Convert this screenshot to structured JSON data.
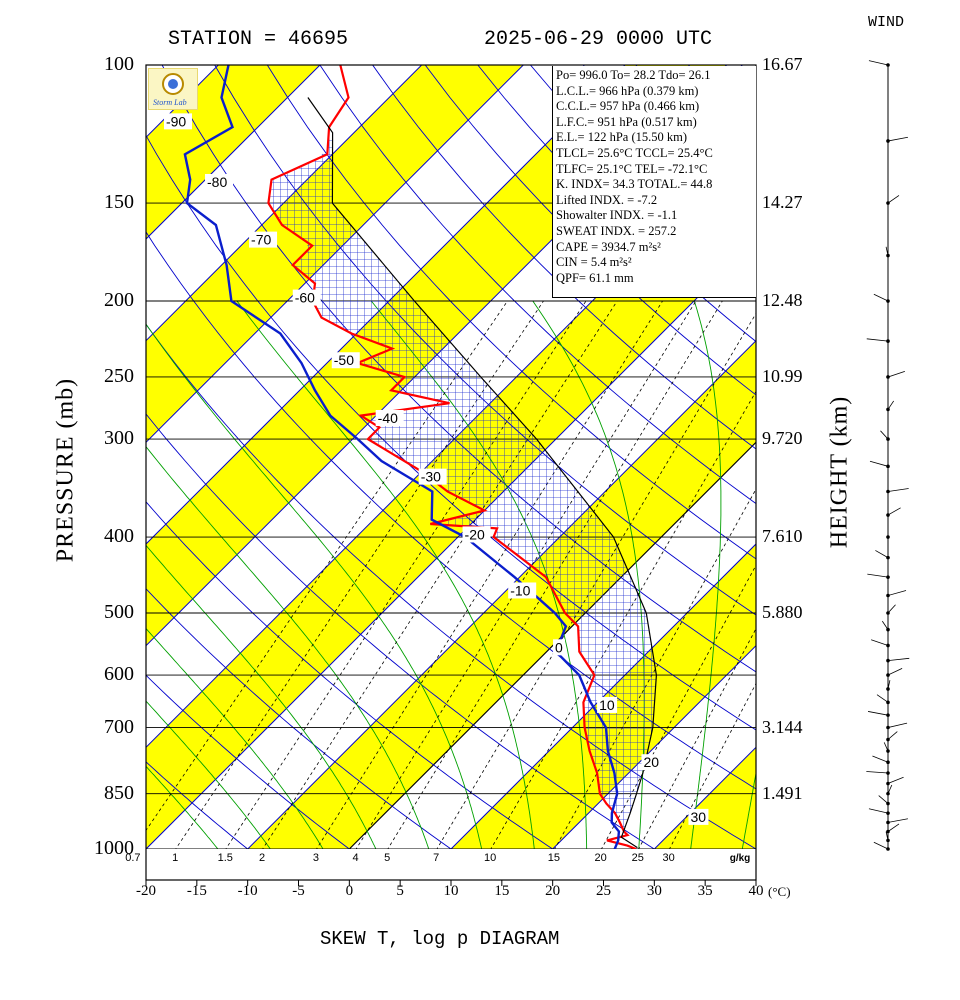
{
  "header": {
    "station": "STATION = 46695",
    "datetime": "2025-06-29 0000 UTC",
    "wind_title": "WIND"
  },
  "axes": {
    "ylabel_left": "PRESSURE (mb)",
    "ylabel_right": "HEIGHT (km)",
    "bottom_title": "SKEW T, log p DIAGRAM",
    "temp_unit": "(°C)",
    "mixing_unit": "g/kg"
  },
  "logo_text": "Storm Lab",
  "colors": {
    "temperature": "#ff0000",
    "dewpoint": "#0a1ecc",
    "band": "#ffff00",
    "isotherm": "#0000cc",
    "moist_adiabat": "#00a000",
    "parcel": "#000000"
  },
  "indices": {
    "line1": "Po= 996.0 To= 28.2 Tdo= 26.1",
    "lcl": "L.C.L.= 966 hPa (0.379 km)",
    "ccl": "C.C.L.= 957 hPa (0.466 km)",
    "lfc": "L.F.C.= 951 hPa (0.517 km)",
    "el": "E.L.= 122 hPa (15.50 km)",
    "t_lcl_ccl": "TLCL= 25.6°C  TCCL= 25.4°C",
    "t_lfc_el": "TLFC= 25.1°C  TEL= -72.1°C",
    "k_total": "K. INDX= 34.3  TOTAL.= 44.8",
    "lifted": "Lifted INDX. =   -7.2",
    "showalter": "Showalter INDX. =   -1.1",
    "sweat": "SWEAT INDX. =  257.2",
    "cape": "CAPE = 3934.7 m²s²",
    "cin": "CIN   =   5.4 m²s²",
    "qpf": "QPF= 61.1 mm"
  },
  "chart_data": {
    "type": "line",
    "title": "SKEW T, log p DIAGRAM",
    "xlabel": "(°C)",
    "ylabel": "PRESSURE (mb)",
    "y_scale": "log",
    "ylim": [
      1000,
      100
    ],
    "xlim": [
      -20,
      40
    ],
    "x_ticks": [
      -20,
      -15,
      -10,
      -5,
      0,
      5,
      10,
      15,
      20,
      25,
      30,
      35,
      40
    ],
    "pressure_ticks": [
      100,
      150,
      200,
      250,
      300,
      400,
      500,
      600,
      700,
      850,
      1000
    ],
    "height_ticks": [
      {
        "p": 100,
        "label": "16.67"
      },
      {
        "p": 150,
        "label": "14.27"
      },
      {
        "p": 200,
        "label": "12.48"
      },
      {
        "p": 250,
        "label": "10.99"
      },
      {
        "p": 300,
        "label": "9.720"
      },
      {
        "p": 400,
        "label": "7.610"
      },
      {
        "p": 500,
        "label": "5.880"
      },
      {
        "p": 700,
        "label": "3.144"
      },
      {
        "p": 850,
        "label": "1.491"
      }
    ],
    "mixing_ratio_labels": [
      "0.7",
      "1",
      "1.5",
      "2",
      "3",
      "4",
      "5",
      "7",
      "10",
      "15",
      "20",
      "25",
      "30"
    ],
    "mixing_ratio_values": [
      0.7,
      1,
      1.5,
      2,
      3,
      4,
      5,
      7,
      10,
      15,
      20,
      25,
      30
    ],
    "isotherm_labels": [
      {
        "t": -90,
        "p": 118
      },
      {
        "t": -80,
        "p": 141
      },
      {
        "t": -70,
        "p": 167
      },
      {
        "t": -60,
        "p": 198
      },
      {
        "t": -50,
        "p": 238
      },
      {
        "t": -40,
        "p": 282
      },
      {
        "t": -30,
        "p": 335
      },
      {
        "t": -20,
        "p": 397
      },
      {
        "t": -10,
        "p": 468
      },
      {
        "t": 0,
        "p": 553
      },
      {
        "t": 10,
        "p": 655
      },
      {
        "t": 20,
        "p": 775
      },
      {
        "t": 30,
        "p": 910
      }
    ],
    "series": [
      {
        "name": "Temperature",
        "p": [
          1000,
          990,
          975,
          960,
          950,
          925,
          900,
          875,
          850,
          800,
          750,
          700,
          650,
          600,
          560,
          520,
          500,
          450,
          400,
          390,
          385,
          370,
          350,
          330,
          300,
          290,
          280,
          270,
          260,
          250,
          240,
          230,
          220,
          210,
          200,
          190,
          180,
          170,
          160,
          150,
          140,
          130,
          120,
          110,
          100
        ],
        "t": [
          28.2,
          27.0,
          24.5,
          26.0,
          25.3,
          24.0,
          22.6,
          20.8,
          19.2,
          16.9,
          14.0,
          11.2,
          8.6,
          7.0,
          3.2,
          0.6,
          -2.0,
          -7.4,
          -16.5,
          -17.0,
          -24.0,
          -20.0,
          -25.5,
          -30.0,
          -38.5,
          -38.5,
          -41.5,
          -34.0,
          -41.0,
          -41.0,
          -47.0,
          -45.0,
          -50.5,
          -55.0,
          -57.5,
          -59.0,
          -63.0,
          -63.0,
          -68.0,
          -71.5,
          -73.5,
          -70.5,
          -73.0,
          -74.0,
          -78.0
        ]
      },
      {
        "name": "Dewpoint",
        "p": [
          1000,
          975,
          950,
          925,
          900,
          850,
          800,
          750,
          700,
          650,
          600,
          560,
          520,
          500,
          450,
          400,
          380,
          350,
          320,
          300,
          280,
          260,
          240,
          220,
          200,
          180,
          160,
          150,
          140,
          130,
          120,
          110,
          100
        ],
        "t": [
          26.1,
          25.6,
          24.8,
          23.2,
          22.3,
          20.9,
          18.6,
          15.8,
          13.3,
          9.3,
          5.5,
          0.9,
          -0.6,
          -3.0,
          -10.5,
          -19.3,
          -24.3,
          -27.0,
          -35.0,
          -39.5,
          -44.5,
          -48.5,
          -52.5,
          -57.5,
          -65.5,
          -69.5,
          -74.5,
          -79.5,
          -81.5,
          -84.5,
          -82.5,
          -86.5,
          -89.0
        ]
      },
      {
        "name": "Parcel",
        "p": [
          996,
          966,
          900,
          850,
          800,
          700,
          600,
          500,
          400,
          300,
          250,
          200,
          150,
          122,
          110
        ],
        "t": [
          28.2,
          25.6,
          24.1,
          22.8,
          21.4,
          17.9,
          13.1,
          6.0,
          -4.7,
          -21.9,
          -33.5,
          -47.5,
          -65.2,
          -72.1,
          -78.0
        ]
      }
    ]
  }
}
